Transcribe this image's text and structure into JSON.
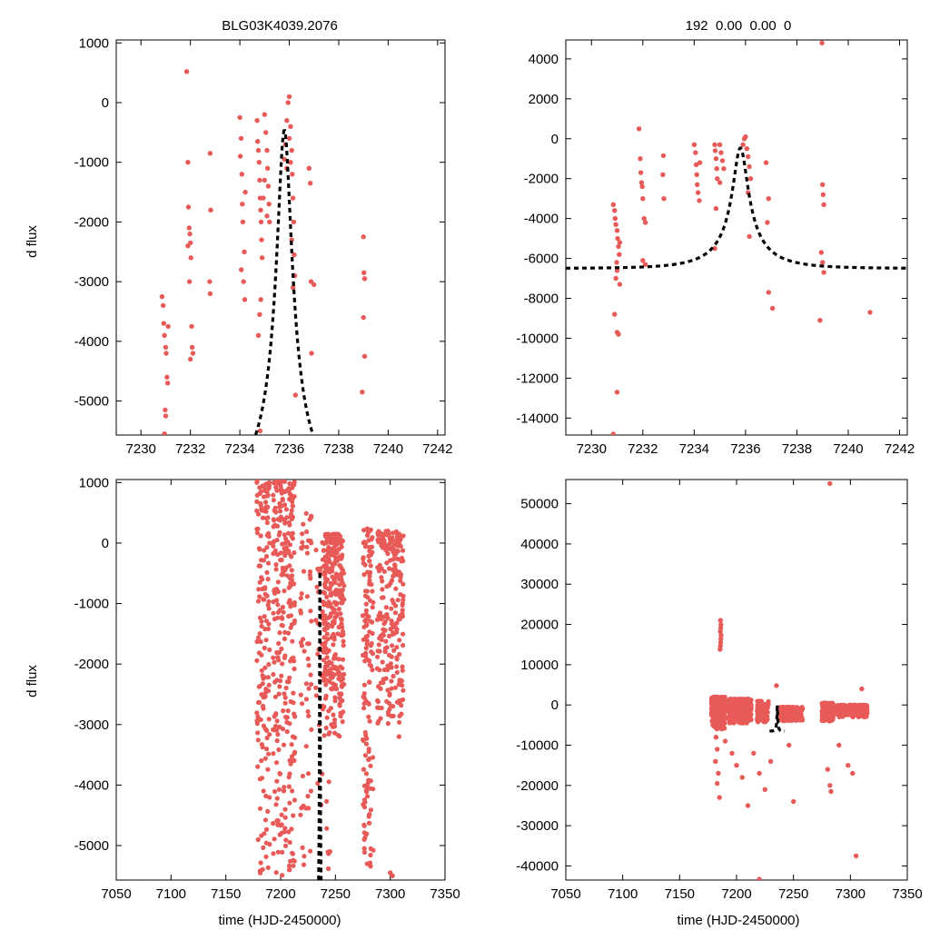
{
  "colors": {
    "points": "#e85a58",
    "model": "#000000",
    "axes": "#000000"
  },
  "event_title": "BLG03K4039.2076",
  "fit_params": "192  0.00  0.00  0",
  "chart_data": [
    {
      "id": "zoom-linear",
      "type": "scatter",
      "title": "BLG03K4039.2076",
      "xlabel": "",
      "ylabel": "d flux",
      "xlim": [
        7229,
        7242.3
      ],
      "ylim": [
        -5570,
        1050
      ],
      "xticks": [
        7230,
        7232,
        7234,
        7236,
        7238,
        7240,
        7242
      ],
      "yticks": [
        1000,
        0,
        -1000,
        -2000,
        -3000,
        -4000,
        -5000
      ],
      "model": {
        "t0": 7235.8,
        "peak": -460,
        "base": -6500,
        "u0": 0.15,
        "tE": 2.0,
        "range": [
          7229,
          7242.3
        ]
      },
      "points": [
        [
          7230.85,
          -3250
        ],
        [
          7230.9,
          -3400
        ],
        [
          7230.92,
          -3700
        ],
        [
          7230.95,
          -3900
        ],
        [
          7231.0,
          -4100
        ],
        [
          7231.02,
          -4200
        ],
        [
          7231.05,
          -4600
        ],
        [
          7231.08,
          -4700
        ],
        [
          7230.98,
          -5150
        ],
        [
          7231.0,
          -5250
        ],
        [
          7230.95,
          -5550
        ],
        [
          7231.1,
          -3750
        ],
        [
          7231.85,
          520
        ],
        [
          7231.9,
          -1000
        ],
        [
          7231.92,
          -1750
        ],
        [
          7231.95,
          -2100
        ],
        [
          7231.98,
          -2200
        ],
        [
          7232.0,
          -2350
        ],
        [
          7232.02,
          -2600
        ],
        [
          7231.96,
          -3000
        ],
        [
          7232.05,
          -3750
        ],
        [
          7232.07,
          -4100
        ],
        [
          7232.1,
          -4200
        ],
        [
          7231.9,
          -2400
        ],
        [
          7232.0,
          -4300
        ],
        [
          7232.8,
          -850
        ],
        [
          7232.82,
          -1800
        ],
        [
          7232.78,
          -3000
        ],
        [
          7232.8,
          -3200
        ],
        [
          7234.0,
          -250
        ],
        [
          7234.05,
          -600
        ],
        [
          7234.02,
          -900
        ],
        [
          7234.08,
          -1200
        ],
        [
          7234.1,
          -1700
        ],
        [
          7234.12,
          -2000
        ],
        [
          7234.06,
          -2800
        ],
        [
          7234.15,
          -3000
        ],
        [
          7234.2,
          -3300
        ],
        [
          7234.22,
          -1500
        ],
        [
          7234.18,
          -2500
        ],
        [
          7234.7,
          -300
        ],
        [
          7234.72,
          -650
        ],
        [
          7234.75,
          -800
        ],
        [
          7234.78,
          -1000
        ],
        [
          7234.8,
          -1300
        ],
        [
          7234.82,
          -1600
        ],
        [
          7234.84,
          -1800
        ],
        [
          7234.86,
          -2000
        ],
        [
          7234.88,
          -2300
        ],
        [
          7234.9,
          -2600
        ],
        [
          7234.85,
          -3300
        ],
        [
          7234.8,
          -3550
        ],
        [
          7234.75,
          -3900
        ],
        [
          7234.82,
          -5500
        ],
        [
          7235.0,
          -200
        ],
        [
          7235.05,
          -500
        ],
        [
          7235.1,
          -800
        ],
        [
          7235.12,
          -1100
        ],
        [
          7235.15,
          -1400
        ],
        [
          7235.18,
          -1700
        ],
        [
          7235.2,
          -2000
        ],
        [
          7235.0,
          -1300
        ],
        [
          7234.95,
          -1600
        ],
        [
          7235.1,
          -1900
        ],
        [
          7235.8,
          -950
        ],
        [
          7235.85,
          -700
        ],
        [
          7235.9,
          -300
        ],
        [
          7235.95,
          0
        ],
        [
          7236.0,
          100
        ],
        [
          7236.05,
          -400
        ],
        [
          7236.1,
          -800
        ],
        [
          7236.12,
          -1200
        ],
        [
          7236.15,
          -1600
        ],
        [
          7236.18,
          -2000
        ],
        [
          7236.1,
          -2300
        ],
        [
          7236.0,
          -600
        ],
        [
          7236.05,
          -1000
        ],
        [
          7235.9,
          -1100
        ],
        [
          7236.2,
          -2550
        ],
        [
          7236.22,
          -2900
        ],
        [
          7236.25,
          -4900
        ],
        [
          7236.15,
          -3100
        ],
        [
          7236.8,
          -1100
        ],
        [
          7236.85,
          -1350
        ],
        [
          7236.88,
          -3000
        ],
        [
          7236.9,
          -4200
        ],
        [
          7237.0,
          -3050
        ],
        [
          7239.0,
          -2250
        ],
        [
          7239.02,
          -2850
        ],
        [
          7239.05,
          -2950
        ],
        [
          7239.0,
          -3600
        ],
        [
          7239.05,
          -4250
        ],
        [
          7238.95,
          -4850
        ]
      ]
    },
    {
      "id": "zoom-wide",
      "type": "scatter",
      "title": "192  0.00  0.00  0",
      "xlabel": "",
      "ylabel": "",
      "xlim": [
        7229,
        7242.3
      ],
      "ylim": [
        -14850,
        4950
      ],
      "xticks": [
        7230,
        7232,
        7234,
        7236,
        7238,
        7240,
        7242
      ],
      "yticks": [
        4000,
        2000,
        0,
        -2000,
        -4000,
        -6000,
        -8000,
        -10000,
        -12000,
        -14000
      ],
      "model": {
        "t0": 7235.8,
        "peak": -460,
        "base": -6500,
        "u0": 0.15,
        "tE": 2.0,
        "range": [
          7229,
          7242.3
        ]
      },
      "points": [
        [
          7230.85,
          -3300
        ],
        [
          7230.9,
          -3600
        ],
        [
          7230.92,
          -4000
        ],
        [
          7230.95,
          -4300
        ],
        [
          7231.0,
          -4600
        ],
        [
          7231.02,
          -5000
        ],
        [
          7231.05,
          -5400
        ],
        [
          7231.08,
          -5800
        ],
        [
          7230.98,
          -6200
        ],
        [
          7231.0,
          -6600
        ],
        [
          7230.95,
          -7000
        ],
        [
          7231.1,
          -7300
        ],
        [
          7230.9,
          -8800
        ],
        [
          7231.0,
          -9700
        ],
        [
          7231.05,
          -9800
        ],
        [
          7231.0,
          -12700
        ],
        [
          7230.85,
          -14800
        ],
        [
          7231.1,
          -5200
        ],
        [
          7231.85,
          500
        ],
        [
          7231.9,
          -1000
        ],
        [
          7231.92,
          -1700
        ],
        [
          7231.95,
          -2200
        ],
        [
          7231.98,
          -2400
        ],
        [
          7232.0,
          -3000
        ],
        [
          7232.05,
          -4000
        ],
        [
          7232.1,
          -4200
        ],
        [
          7232.0,
          -6100
        ],
        [
          7232.1,
          -6300
        ],
        [
          7232.8,
          -850
        ],
        [
          7232.82,
          -3000
        ],
        [
          7232.78,
          -1800
        ],
        [
          7234.0,
          -300
        ],
        [
          7234.05,
          -700
        ],
        [
          7234.08,
          -1300
        ],
        [
          7234.1,
          -1800
        ],
        [
          7234.12,
          -2300
        ],
        [
          7234.15,
          -2700
        ],
        [
          7234.2,
          -3100
        ],
        [
          7234.22,
          -1200
        ],
        [
          7234.8,
          -300
        ],
        [
          7234.82,
          -600
        ],
        [
          7234.85,
          -1000
        ],
        [
          7234.88,
          -1500
        ],
        [
          7234.9,
          -2000
        ],
        [
          7234.85,
          -3500
        ],
        [
          7234.8,
          -5500
        ],
        [
          7235.0,
          -300
        ],
        [
          7235.05,
          -700
        ],
        [
          7235.1,
          -1100
        ],
        [
          7235.15,
          -1500
        ],
        [
          7235.0,
          -2200
        ],
        [
          7235.9,
          -300
        ],
        [
          7235.95,
          0
        ],
        [
          7236.0,
          100
        ],
        [
          7236.05,
          -500
        ],
        [
          7236.1,
          -900
        ],
        [
          7236.15,
          -1400
        ],
        [
          7236.2,
          -2000
        ],
        [
          7236.1,
          -2700
        ],
        [
          7236.15,
          -4900
        ],
        [
          7236.8,
          -1200
        ],
        [
          7236.9,
          -3000
        ],
        [
          7236.85,
          -4200
        ],
        [
          7236.9,
          -7700
        ],
        [
          7237.05,
          -8500
        ],
        [
          7239.0,
          -2300
        ],
        [
          7239.02,
          -2800
        ],
        [
          7239.05,
          -3300
        ],
        [
          7238.95,
          -5700
        ],
        [
          7239.0,
          -6200
        ],
        [
          7239.05,
          -6700
        ],
        [
          7238.9,
          -9100
        ],
        [
          7240.85,
          -8700
        ],
        [
          7238.98,
          4800
        ]
      ]
    },
    {
      "id": "full-linear",
      "type": "scatter",
      "title": "",
      "xlabel": "time (HJD-2450000)",
      "ylabel": "d flux",
      "xlim": [
        7050,
        7350
      ],
      "ylim": [
        -5570,
        1050
      ],
      "xticks": [
        7050,
        7100,
        7150,
        7200,
        7250,
        7300,
        7350
      ],
      "yticks": [
        1000,
        0,
        -1000,
        -2000,
        -3000,
        -4000,
        -5000
      ],
      "model": {
        "t0": 7235.8,
        "peak": -460,
        "base": -6500,
        "u0": 0.15,
        "tE": 2.0,
        "range": [
          7229,
          7242.3
        ]
      },
      "clusters": [
        {
          "x": [
            7178,
            7190
          ],
          "y": [
            -5500,
            1050
          ],
          "n": 160,
          "seed": 11
        },
        {
          "x": [
            7193,
            7213
          ],
          "y": [
            -5500,
            1050
          ],
          "n": 280,
          "seed": 12
        },
        {
          "x": [
            7218,
            7228
          ],
          "y": [
            -5500,
            500
          ],
          "n": 60,
          "seed": 13
        },
        {
          "x": [
            7238,
            7258
          ],
          "y": [
            -3200,
            150
          ],
          "n": 300,
          "seed": 14
        },
        {
          "x": [
            7232,
            7245
          ],
          "y": [
            -5500,
            0
          ],
          "n": 40,
          "seed": 15
        },
        {
          "x": [
            7275,
            7285
          ],
          "y": [
            -5500,
            250
          ],
          "n": 140,
          "seed": 16
        },
        {
          "x": [
            7288,
            7312
          ],
          "y": [
            -3000,
            200
          ],
          "n": 240,
          "seed": 17
        }
      ],
      "points": [
        [
          7300.0,
          -5450
        ],
        [
          7302.0,
          -5500
        ],
        [
          7245.0,
          -5100
        ],
        [
          7208.0,
          -5400
        ],
        [
          7308.0,
          -3200
        ]
      ]
    },
    {
      "id": "full-wide",
      "type": "scatter",
      "title": "",
      "xlabel": "time (HJD-2450000)",
      "ylabel": "",
      "xlim": [
        7050,
        7350
      ],
      "ylim": [
        -43500,
        56000
      ],
      "xticks": [
        7050,
        7100,
        7150,
        7200,
        7250,
        7300,
        7350
      ],
      "yticks": [
        50000,
        40000,
        30000,
        20000,
        10000,
        0,
        -10000,
        -20000,
        -30000,
        -40000
      ],
      "model": {
        "t0": 7235.8,
        "peak": -460,
        "base": -6500,
        "u0": 0.15,
        "tE": 2.0,
        "range": [
          7229,
          7242.3
        ]
      },
      "clusters": [
        {
          "x": [
            7178,
            7190
          ],
          "y": [
            -6000,
            2000
          ],
          "n": 250,
          "seed": 21
        },
        {
          "x": [
            7193,
            7213
          ],
          "y": [
            -4500,
            1500
          ],
          "n": 300,
          "seed": 22
        },
        {
          "x": [
            7218,
            7228
          ],
          "y": [
            -4500,
            1000
          ],
          "n": 80,
          "seed": 23
        },
        {
          "x": [
            7238,
            7258
          ],
          "y": [
            -4000,
            -500
          ],
          "n": 200,
          "seed": 24
        },
        {
          "x": [
            7275,
            7285
          ],
          "y": [
            -4000,
            500
          ],
          "n": 150,
          "seed": 25
        },
        {
          "x": [
            7288,
            7315
          ],
          "y": [
            -3000,
            0
          ],
          "n": 200,
          "seed": 26
        }
      ],
      "points": [
        [
          7185.5,
          13800
        ],
        [
          7185.8,
          14600
        ],
        [
          7186.0,
          15500
        ],
        [
          7186.2,
          16400
        ],
        [
          7186.4,
          17300
        ],
        [
          7185.7,
          18200
        ],
        [
          7186.1,
          19100
        ],
        [
          7186.3,
          20000
        ],
        [
          7185.9,
          21000
        ],
        [
          7182.0,
          -8000
        ],
        [
          7183.0,
          -11000
        ],
        [
          7181.5,
          -14000
        ],
        [
          7184.0,
          -17000
        ],
        [
          7183.0,
          -19500
        ],
        [
          7185.0,
          -23000
        ],
        [
          7190.0,
          -9000
        ],
        [
          7196.0,
          -12000
        ],
        [
          7200.0,
          -15000
        ],
        [
          7205.0,
          -18000
        ],
        [
          7210.0,
          -25000
        ],
        [
          7215.0,
          -12000
        ],
        [
          7220.0,
          -17000
        ],
        [
          7225.0,
          -21000
        ],
        [
          7230.0,
          -14000
        ],
        [
          7246.0,
          -10000
        ],
        [
          7250.0,
          -24000
        ],
        [
          7280.0,
          -16000
        ],
        [
          7282.0,
          -20000
        ],
        [
          7283.0,
          -21500
        ],
        [
          7290.0,
          -10000
        ],
        [
          7298.0,
          -15000
        ],
        [
          7302.0,
          -17000
        ],
        [
          7305.0,
          -37500
        ],
        [
          7310.0,
          4000
        ],
        [
          7235.0,
          4800
        ],
        [
          7220.0,
          -43300
        ],
        [
          7282.0,
          55000
        ]
      ]
    }
  ]
}
